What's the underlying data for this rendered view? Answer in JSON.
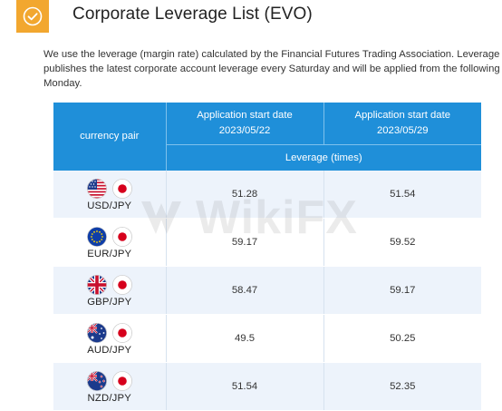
{
  "header": {
    "title": "Corporate Leverage List (EVO)",
    "check_icon": "check-circle-icon",
    "accent_color": "#f2a72f"
  },
  "intro": {
    "text": "We use the leverage (margin rate) calculated by the Financial Futures Trading Association. Leverage publishes the latest corporate account leverage every Saturday and will be applied from the following Monday."
  },
  "table": {
    "header_color": "#1f8fd9",
    "pair_header": "currency pair",
    "date_headers": [
      "Application start date\n2023/05/22",
      "Application start date\n2023/05/29"
    ],
    "leverage_header": "Leverage (times)",
    "rows": [
      {
        "pair": "USD/JPY",
        "flag1": "us-flag-icon",
        "flag2": "jp-flag-icon",
        "v1": "51.28",
        "v2": "51.54"
      },
      {
        "pair": "EUR/JPY",
        "flag1": "eu-flag-icon",
        "flag2": "jp-flag-icon",
        "v1": "59.17",
        "v2": "59.52"
      },
      {
        "pair": "GBP/JPY",
        "flag1": "uk-flag-icon",
        "flag2": "jp-flag-icon",
        "v1": "58.47",
        "v2": "59.17"
      },
      {
        "pair": "AUD/JPY",
        "flag1": "au-flag-icon",
        "flag2": "jp-flag-icon",
        "v1": "49.5",
        "v2": "50.25"
      },
      {
        "pair": "NZD/JPY",
        "flag1": "nz-flag-icon",
        "flag2": "jp-flag-icon",
        "v1": "51.54",
        "v2": "52.35"
      }
    ]
  },
  "watermark": {
    "text": "WikiFX"
  }
}
